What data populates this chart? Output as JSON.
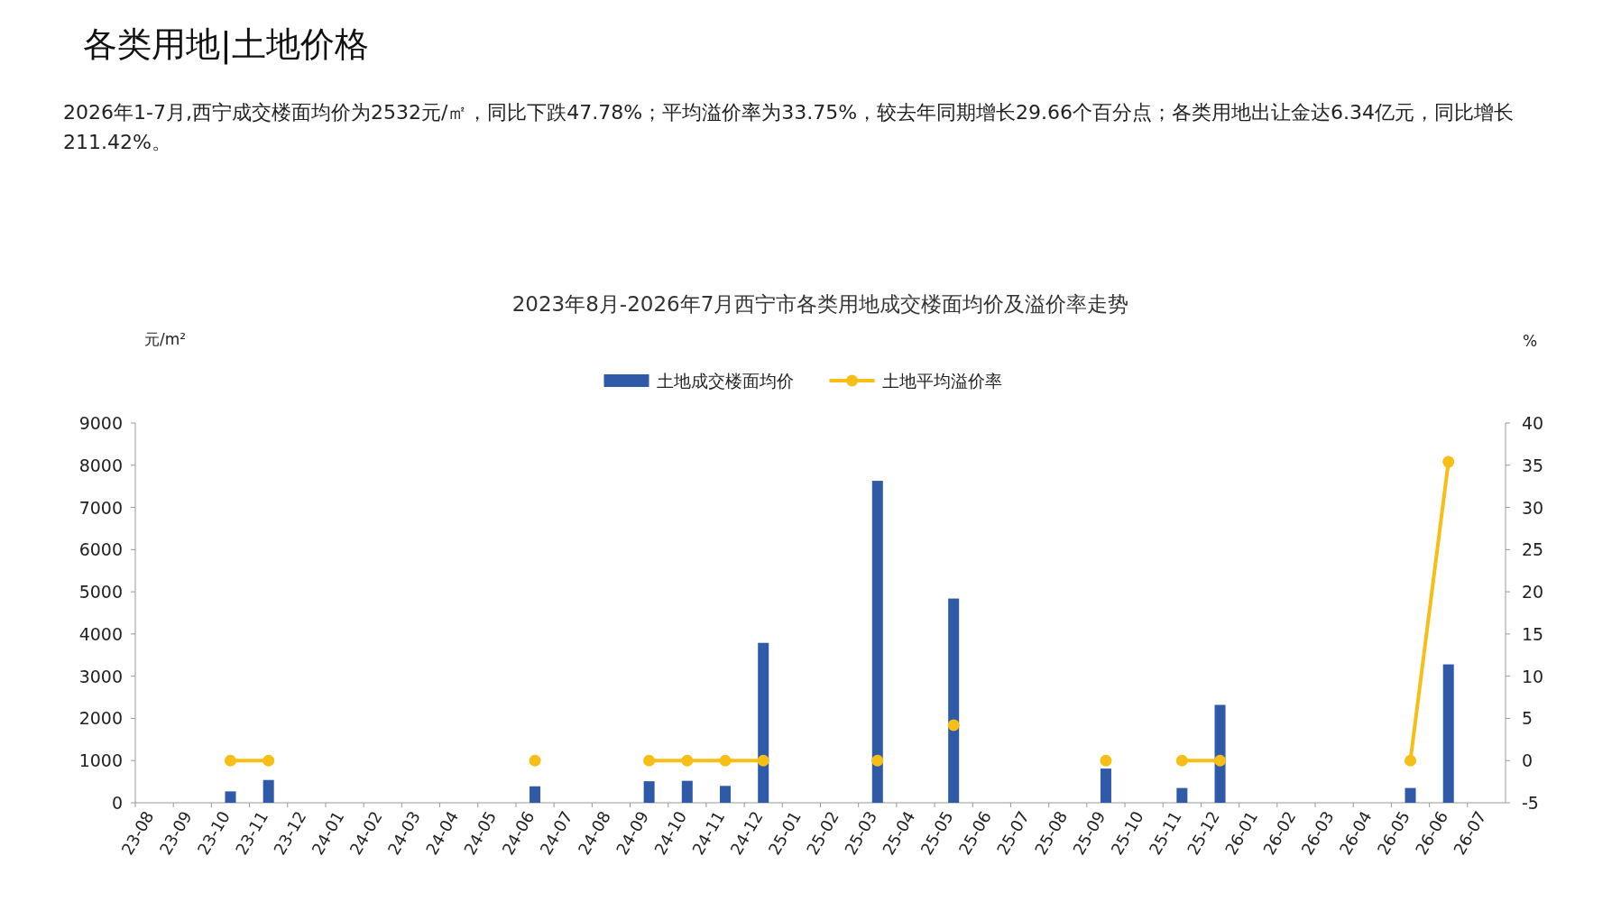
{
  "chart_data": {
    "type": "bar",
    "title": "2023年8月-2026年7月西宁市各类用地成交楼面均价及溢价率走势",
    "annotations": [
      "各类用地|土地价格",
      "2026年1-7月,西宁成交楼面均价为2532元/㎡，同比下跌47.78%；平均溢价率为33.75%，较去年同期增长29.66个百分点；各类用地出让金达6.34亿元，同比增长211.42%。"
    ],
    "ylabel": "元/m²",
    "y2label": "%",
    "categories": [
      "23-08",
      "23-09",
      "23-10",
      "23-11",
      "23-12",
      "24-01",
      "24-02",
      "24-03",
      "24-04",
      "24-05",
      "24-06",
      "24-07",
      "24-08",
      "24-09",
      "24-10",
      "24-11",
      "24-12",
      "25-01",
      "25-02",
      "25-03",
      "25-04",
      "25-05",
      "25-06",
      "25-07",
      "25-08",
      "25-09",
      "25-10",
      "25-11",
      "25-12",
      "26-01",
      "26-02",
      "26-03",
      "26-04",
      "26-05",
      "26-06",
      "26-07"
    ],
    "series": [
      {
        "name": "土地成交楼面均价",
        "color": "#2e5aa8",
        "values": [
          null,
          null,
          270,
          540,
          null,
          null,
          null,
          null,
          null,
          null,
          390,
          null,
          null,
          510,
          520,
          400,
          3790,
          null,
          null,
          7630,
          null,
          4840,
          null,
          null,
          null,
          810,
          null,
          350,
          2320,
          null,
          null,
          null,
          null,
          350,
          3280,
          null
        ]
      },
      {
        "name": "土地平均溢价率",
        "type": "line",
        "axis": "y2",
        "color": "#f7be16",
        "marker": "circle",
        "values": [
          null,
          null,
          0,
          0,
          null,
          null,
          null,
          null,
          null,
          null,
          0,
          null,
          null,
          0,
          0,
          0,
          0,
          null,
          null,
          0,
          null,
          4.2,
          null,
          null,
          null,
          0,
          null,
          0,
          0,
          null,
          null,
          null,
          null,
          0,
          35.4,
          null
        ]
      }
    ],
    "ylim": [
      0,
      9000
    ],
    "yticks": [
      0,
      1000,
      2000,
      3000,
      4000,
      5000,
      6000,
      7000,
      8000,
      9000
    ],
    "y2lim": [
      -5,
      40
    ],
    "y2ticks": [
      -5,
      0,
      5,
      10,
      15,
      20,
      25,
      30,
      35,
      40
    ],
    "legend": "top",
    "grid": false
  }
}
